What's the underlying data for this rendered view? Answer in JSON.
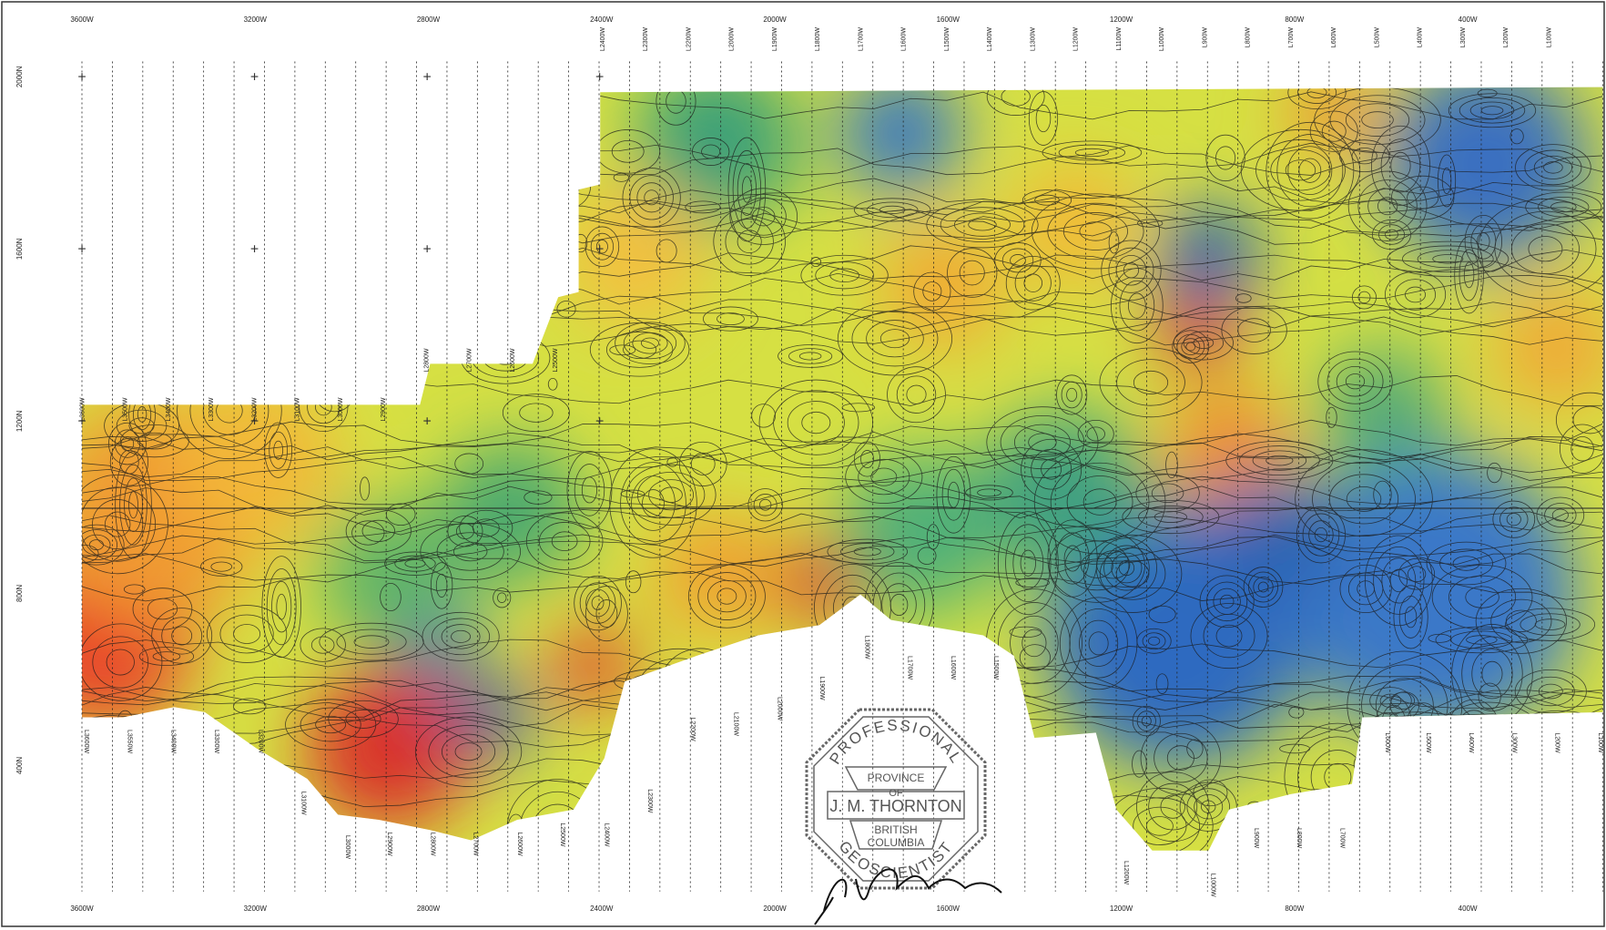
{
  "map": {
    "top_axis": [
      "3600W",
      "3200W",
      "2800W",
      "2400W",
      "2000W",
      "1600W",
      "1200W",
      "800W",
      "400W"
    ],
    "bottom_axis": [
      "3600W",
      "3200W",
      "2800W",
      "2400W",
      "2000W",
      "1600W",
      "1200W",
      "800W",
      "400W"
    ],
    "left_axis": [
      "2000N",
      "1600N",
      "1200N",
      "800N",
      "400N"
    ],
    "top_lines": [
      "L2400W",
      "L2300W",
      "L2200W",
      "L2000W",
      "L1900W",
      "L1800W",
      "L1700W",
      "L1600W",
      "L1500W",
      "L1400W",
      "L1300W",
      "L1200W",
      "L1100W",
      "L1000W",
      "L900W",
      "L800W",
      "L700W",
      "L600W",
      "L500W",
      "L400W",
      "L300W",
      "L200W",
      "L100W"
    ],
    "mid_lines": [
      "L3600W",
      "L3500W",
      "L3400W",
      "L3300W",
      "L3200W",
      "L3100W",
      "L3000W",
      "L2900W",
      "L2800W",
      "L2700W",
      "L2600W",
      "L2500W"
    ],
    "bottom_lines": [
      "L3600W",
      "L3550W",
      "L3400W",
      "L3300W",
      "L3200W",
      "L3100W",
      "L3000W",
      "L2900W",
      "L2800W",
      "L2700W",
      "L2600W",
      "L2500W",
      "L2400W",
      "L2300W",
      "L2200W",
      "L2100W",
      "L2000W",
      "L1900W",
      "L1800W",
      "L1700W",
      "L1600W",
      "L1500W",
      "L1200W",
      "L1000W",
      "L900W",
      "L800W",
      "L700W",
      "L600W",
      "L500W",
      "L400W",
      "L300W",
      "L200W",
      "L100W"
    ],
    "stamp": {
      "top": "PROFESSIONAL",
      "province": "PROVINCE",
      "of": "OF",
      "name": "J. M. THORNTON",
      "british": "BRITISH",
      "columbia": "COLUMBIA",
      "bottom": "GEOSCIENTIST"
    }
  }
}
